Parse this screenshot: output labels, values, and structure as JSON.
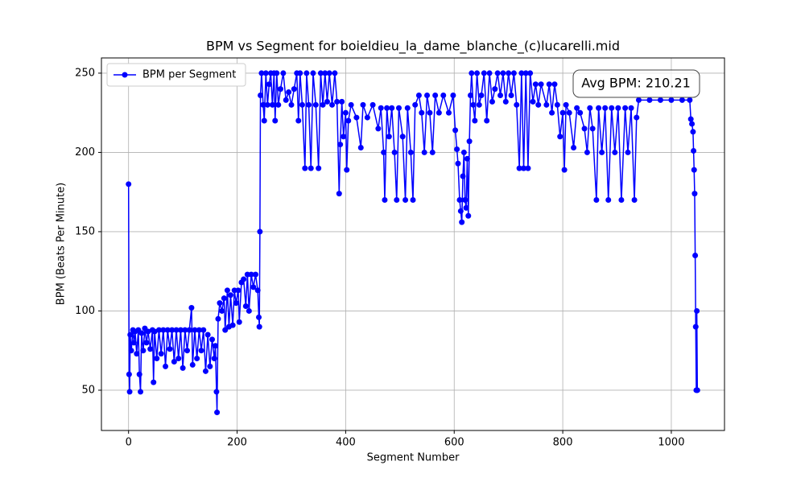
{
  "chart_data": {
    "type": "line",
    "title": "BPM vs Segment for boieldieu_la_dame_blanche_(c)lucarelli.mid",
    "x_label": "Segment Number",
    "y_label": "BPM (Beats Per Minute)",
    "annotation": "Avg BPM: 210.21",
    "xlim": [
      -50,
      1098
    ],
    "ylim": [
      24.6,
      259.6
    ],
    "xticks": [
      0,
      200,
      400,
      600,
      800,
      1000
    ],
    "yticks": [
      50,
      100,
      150,
      200,
      250
    ],
    "grid": true,
    "legend": "upper left",
    "x": [
      0,
      1,
      2,
      3,
      5,
      8,
      10,
      12,
      15,
      18,
      20,
      22,
      24,
      27,
      30,
      33,
      36,
      40,
      44,
      46,
      48,
      52,
      56,
      60,
      64,
      68,
      72,
      76,
      80,
      84,
      88,
      92,
      96,
      100,
      104,
      108,
      112,
      116,
      118,
      122,
      126,
      130,
      134,
      138,
      142,
      146,
      150,
      154,
      158,
      160,
      162,
      163,
      165,
      168,
      172,
      176,
      178,
      182,
      185,
      188,
      192,
      195,
      198,
      202,
      204,
      208,
      212,
      216,
      219,
      222,
      226,
      230,
      234,
      238,
      240,
      241,
      242,
      243,
      245,
      248,
      250,
      253,
      256,
      259,
      262,
      265,
      268,
      270,
      273,
      276,
      280,
      285,
      290,
      295,
      300,
      305,
      310,
      313,
      316,
      320,
      325,
      328,
      332,
      336,
      340,
      345,
      350,
      354,
      358,
      362,
      366,
      370,
      375,
      380,
      384,
      388,
      390,
      393,
      396,
      400,
      402,
      405,
      410,
      420,
      428,
      432,
      440,
      450,
      460,
      465,
      470,
      472,
      476,
      480,
      485,
      490,
      494,
      498,
      505,
      510,
      514,
      520,
      524,
      528,
      535,
      540,
      545,
      550,
      555,
      560,
      565,
      572,
      580,
      590,
      598,
      602,
      605,
      607,
      610,
      612,
      614,
      616,
      618,
      620,
      622,
      624,
      626,
      628,
      630,
      632,
      635,
      638,
      642,
      646,
      650,
      655,
      660,
      665,
      670,
      675,
      680,
      685,
      690,
      695,
      700,
      705,
      710,
      715,
      720,
      724,
      728,
      732,
      736,
      740,
      745,
      750,
      755,
      760,
      770,
      775,
      780,
      785,
      790,
      795,
      800,
      803,
      806,
      812,
      820,
      826,
      832,
      840,
      845,
      850,
      855,
      862,
      866,
      872,
      878,
      884,
      890,
      896,
      902,
      908,
      915,
      920,
      926,
      932,
      936,
      940,
      960,
      980,
      1000,
      1020,
      1034,
      1036,
      1038,
      1040,
      1041,
      1042,
      1043,
      1044,
      1045,
      1046,
      1047,
      1048
    ],
    "series": [
      {
        "name": "BPM per Segment",
        "color": "#0000ff",
        "values": [
          180,
          60,
          49,
          85,
          75,
          88,
          80,
          87,
          73,
          88,
          60,
          49,
          86,
          75,
          89,
          80,
          87,
          76,
          88,
          55,
          87,
          70,
          88,
          73,
          88,
          65,
          88,
          76,
          88,
          68,
          88,
          70,
          88,
          64,
          88,
          75,
          88,
          102,
          66,
          88,
          70,
          88,
          75,
          88,
          62,
          85,
          65,
          82,
          70,
          78,
          49,
          36,
          95,
          105,
          100,
          108,
          88,
          113,
          90,
          110,
          91,
          113,
          105,
          113,
          93,
          118,
          120,
          103,
          123,
          100,
          123,
          115,
          123,
          113,
          96,
          90,
          150,
          236,
          250,
          230,
          220,
          250,
          230,
          243,
          250,
          230,
          250,
          220,
          250,
          230,
          240,
          250,
          233,
          238,
          230,
          240,
          250,
          220,
          250,
          230,
          190,
          250,
          230,
          190,
          250,
          230,
          190,
          250,
          230,
          250,
          232,
          250,
          230,
          250,
          232,
          174,
          205,
          232,
          210,
          225,
          189,
          220,
          230,
          222,
          203,
          230,
          222,
          230,
          215,
          228,
          200,
          170,
          228,
          210,
          228,
          200,
          170,
          228,
          210,
          170,
          228,
          200,
          170,
          230,
          236,
          225,
          200,
          236,
          225,
          200,
          236,
          225,
          236,
          225,
          236,
          214,
          202,
          193,
          170,
          163,
          156,
          185,
          200,
          170,
          165,
          196,
          160,
          207,
          236,
          250,
          230,
          220,
          250,
          230,
          236,
          250,
          220,
          250,
          232,
          240,
          250,
          236,
          250,
          232,
          250,
          236,
          250,
          230,
          190,
          250,
          190,
          250,
          190,
          250,
          232,
          243,
          230,
          243,
          230,
          243,
          225,
          243,
          230,
          210,
          225,
          189,
          230,
          225,
          203,
          228,
          225,
          215,
          200,
          228,
          215,
          170,
          228,
          200,
          228,
          170,
          228,
          200,
          228,
          170,
          228,
          200,
          228,
          170,
          222,
          233,
          233,
          233,
          233,
          233,
          233,
          221,
          218,
          213,
          201,
          189,
          174,
          135,
          90,
          50,
          100,
          50
        ]
      }
    ]
  }
}
